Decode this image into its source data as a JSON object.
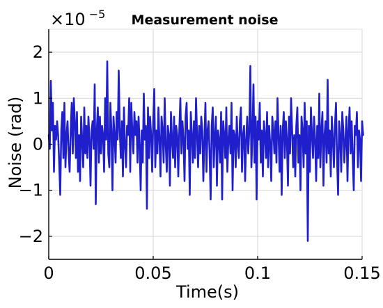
{
  "chart_data": {
    "type": "line",
    "title": "Measurement noise",
    "xlabel": "Time(s)",
    "ylabel": "Noise (rad)",
    "exponent_prefix": "×10",
    "exponent_power": "−5",
    "xlim": [
      0,
      0.15
    ],
    "ylim": [
      -2.5,
      2.5
    ],
    "grid": true,
    "line_color": "#1f1fcc",
    "x_ticks": [
      0,
      0.05,
      0.1,
      0.15
    ],
    "x_tick_labels": [
      "0",
      "0.05",
      "0.1",
      "0.15"
    ],
    "y_ticks": [
      -2,
      -1,
      0,
      1,
      2
    ],
    "y_tick_labels": [
      "−2",
      "−1",
      "0",
      "1",
      "2"
    ],
    "y_scale_note": "values in units of 1e-5 rad",
    "series": [
      {
        "x_start": 0,
        "x_step": 0.0005,
        "values": [
          0.2,
          -0.1,
          1.38,
          0.3,
          0.9,
          -0.6,
          0.4,
          0.1,
          0.5,
          0.2,
          -0.4,
          -1.1,
          0.3,
          0.7,
          -0.3,
          0.9,
          -0.5,
          0.2,
          0.5,
          -0.2,
          -0.6,
          0.3,
          0.9,
          -0.2,
          1.0,
          0.5,
          -0.3,
          0.7,
          -0.6,
          0.2,
          -0.8,
          0.6,
          0.1,
          -0.5,
          0.8,
          -0.2,
          0.4,
          -0.3,
          0.6,
          0.1,
          -0.9,
          0.3,
          0.5,
          -0.1,
          1.3,
          -1.3,
          0.3,
          0.8,
          -0.4,
          0.6,
          -0.2,
          0.4,
          0.2,
          -0.6,
          1.0,
          0.1,
          1.8,
          -0.2,
          -0.5,
          0.9,
          0.3,
          -1.0,
          0.6,
          0.2,
          -0.4,
          0.7,
          0.1,
          1.6,
          0.3,
          -0.3,
          0.5,
          -0.7,
          0.8,
          0.0,
          -0.5,
          0.4,
          0.2,
          1.0,
          -0.6,
          0.9,
          0.3,
          -0.2,
          0.7,
          0.2,
          0.5,
          -0.4,
          0.6,
          0.0,
          -1.0,
          0.3,
          -0.4,
          1.1,
          0.1,
          0.4,
          -1.4,
          0.8,
          -0.3,
          0.6,
          0.2,
          -0.6,
          0.5,
          1.2,
          -0.5,
          0.3,
          -0.2,
          0.8,
          0.1,
          -0.7,
          0.6,
          0.3,
          -0.4,
          1.0,
          0.0,
          -0.6,
          0.4,
          0.2,
          -0.9,
          0.7,
          0.1,
          -0.3,
          0.6,
          -0.5,
          0.4,
          0.2,
          -0.7,
          0.3,
          1.0,
          -0.2,
          0.5,
          0.1,
          -0.8,
          0.6,
          0.9,
          -0.1,
          0.3,
          -1.1,
          0.7,
          0.2,
          -0.4,
          0.5,
          -0.3,
          1.0,
          0.2,
          -0.5,
          0.4,
          -0.2,
          0.6,
          0.3,
          -0.8,
          0.1,
          0.9,
          -0.6,
          0.3,
          0.5,
          -0.2,
          -1.2,
          0.4,
          0.8,
          -0.5,
          0.2,
          0.6,
          -0.9,
          0.3,
          0.1,
          -0.4,
          0.7,
          -1.2,
          0.5,
          0.2,
          -0.3,
          0.8,
          -0.6,
          0.1,
          0.4,
          -0.2,
          0.9,
          -1.0,
          0.3,
          0.2,
          -0.5,
          0.6,
          0.0,
          -0.3,
          0.5,
          0.8,
          -0.6,
          0.2,
          0.4,
          -0.8,
          0.1,
          0.6,
          -0.2,
          0.3,
          1.7,
          -0.5,
          0.2,
          1.3,
          -0.4,
          0.6,
          -1.2,
          0.5,
          0.1,
          0.9,
          -0.4,
          0.3,
          -0.7,
          0.5,
          0.2,
          -0.3,
          0.7,
          -0.5,
          0.4,
          0.0,
          -0.8,
          0.6,
          0.3,
          -0.2,
          0.5,
          -0.4,
          1.0,
          0.2,
          -0.6,
          0.4,
          -1.1,
          0.3,
          0.7,
          -0.3,
          0.5,
          0.1,
          -0.9,
          0.6,
          -0.2,
          1.0,
          0.3,
          -0.5,
          0.2,
          -0.7,
          0.4,
          0.8,
          -0.4,
          0.2,
          -1.0,
          0.6,
          0.3,
          -0.5,
          0.9,
          -0.2,
          0.5,
          -2.1,
          0.4,
          -0.6,
          0.8,
          0.2,
          -0.3,
          0.6,
          0.1,
          -0.8,
          0.4,
          -0.3,
          1.1,
          -0.5,
          0.3,
          0.7,
          -0.9,
          0.2,
          0.5,
          -0.4,
          1.4,
          -0.2,
          0.3,
          -0.7,
          0.6,
          0.1,
          -0.5,
          0.4,
          0.9,
          -0.3,
          -1.1,
          0.5,
          0.2,
          -0.6,
          0.7,
          0.3,
          -0.4,
          0.1,
          0.6,
          -0.8,
          0.3,
          0.8,
          -0.2,
          0.5,
          -0.3,
          -1.0,
          0.4,
          0.2,
          0.7,
          -0.5,
          0.3,
          0.1,
          -0.8,
          0.5,
          0.2
        ]
      }
    ]
  }
}
